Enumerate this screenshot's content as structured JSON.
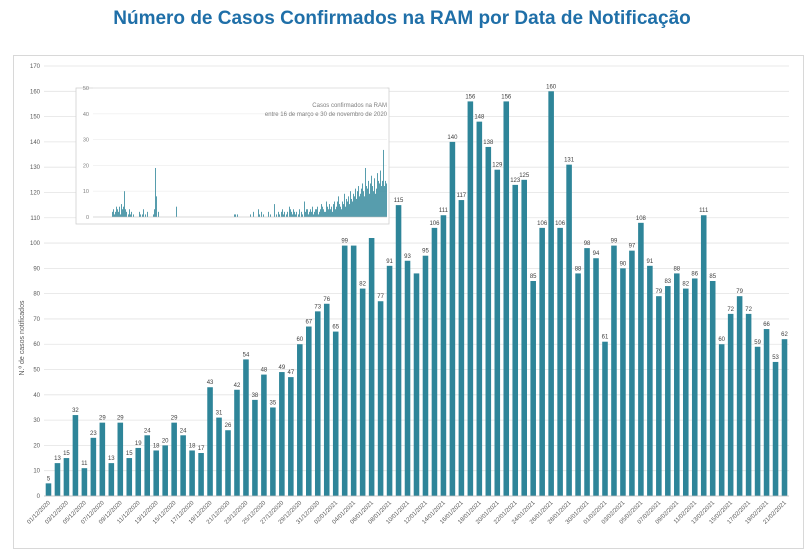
{
  "title": "Número de Casos Confirmados na RAM por Data de Notificação",
  "colors": {
    "bar": "#2e8599",
    "title": "#1f6fa8",
    "grid": "#e3e3e3",
    "text": "#595959"
  },
  "chart_data": [
    {
      "type": "bar",
      "title": "",
      "xlabel": "",
      "ylabel": "N.º de casos notificados",
      "ylim": [
        0,
        170
      ],
      "yticks": [
        0,
        10,
        20,
        30,
        40,
        50,
        60,
        70,
        80,
        90,
        100,
        110,
        120,
        130,
        140,
        150,
        160,
        170
      ],
      "tick_labels": [
        "01/12/2020",
        "03/12/2020",
        "05/12/2020",
        "07/12/2020",
        "09/12/2020",
        "11/12/2020",
        "13/12/2020",
        "15/12/2020",
        "17/12/2020",
        "19/12/2020",
        "21/12/2020",
        "23/12/2020",
        "25/12/2020",
        "27/12/2020",
        "29/12/2020",
        "31/12/2020",
        "02/01/2021",
        "04/01/2021",
        "06/01/2021",
        "08/01/2021",
        "10/01/2021",
        "12/01/2021",
        "14/01/2021",
        "16/01/2021",
        "18/01/2021",
        "20/01/2021",
        "22/01/2021",
        "24/01/2021",
        "26/01/2021",
        "28/01/2021",
        "30/01/2021",
        "01/02/2021",
        "03/02/2021",
        "05/02/2021",
        "07/02/2021",
        "09/02/2021",
        "11/02/2021",
        "13/02/2021",
        "15/02/2021",
        "17/02/2021",
        "19/02/2021",
        "21/02/2021"
      ],
      "values": [
        5,
        13,
        15,
        32,
        11,
        23,
        29,
        13,
        29,
        15,
        19,
        24,
        18,
        20,
        29,
        24,
        18,
        17,
        43,
        31,
        26,
        42,
        54,
        38,
        48,
        35,
        49,
        47,
        60,
        67,
        73,
        76,
        65,
        99,
        99,
        82,
        102,
        77,
        91,
        115,
        93,
        88,
        95,
        106,
        111,
        140,
        117,
        156,
        148,
        138,
        129,
        156,
        123,
        125,
        85,
        106,
        160,
        106,
        131,
        88,
        98,
        94,
        61,
        99,
        90,
        97,
        108,
        91,
        79,
        83,
        88,
        82,
        86,
        111,
        85,
        60,
        72,
        79,
        72,
        59,
        66,
        53,
        62
      ],
      "data_labels": [
        "5",
        "13",
        "15",
        "32",
        "11",
        "23",
        "29",
        "13",
        "29",
        "15",
        "19",
        "24",
        "18",
        "20",
        "29",
        "24",
        "18",
        "17",
        "43",
        "31",
        "26",
        "42",
        "54",
        "38",
        "48",
        "35",
        "49",
        "47",
        "60",
        "67",
        "73",
        "76",
        "65",
        "99",
        "",
        "82",
        "",
        "77",
        "91",
        "115",
        "93",
        "",
        "95",
        "106",
        "111",
        "140",
        "117",
        "156",
        "148",
        "138",
        "129",
        "156",
        "123",
        "125",
        "85",
        "106",
        "160",
        "106",
        "131",
        "88",
        "98",
        "94",
        "61",
        "99",
        "90",
        "97",
        "108",
        "91",
        "79",
        "83",
        "88",
        "82",
        "86",
        "111",
        "85",
        "60",
        "72",
        "79",
        "72",
        "59",
        "66",
        "53",
        "62"
      ]
    },
    {
      "type": "bar",
      "title": "Casos confirmados na RAM entre 16 de março e 30 de novembro de 2020",
      "title_lines": [
        "Casos confirmados na RAM",
        "entre 16 de março e 30 de novembro de 2020"
      ],
      "ylim": [
        0,
        50
      ],
      "yticks": [
        0,
        10,
        20,
        30,
        40,
        50
      ],
      "values": [
        0,
        0,
        0,
        0,
        0,
        0,
        0,
        0,
        0,
        0,
        0,
        0,
        0,
        0,
        0,
        0,
        0,
        0,
        0,
        2,
        3,
        1,
        2,
        4,
        3,
        2,
        4,
        1,
        5,
        3,
        4,
        10,
        3,
        2,
        0,
        1,
        3,
        1,
        2,
        0,
        1,
        0,
        0,
        0,
        0,
        0,
        2,
        1,
        0,
        1,
        3,
        0,
        1,
        0,
        2,
        0,
        0,
        0,
        0,
        0,
        1,
        3,
        19,
        8,
        0,
        2,
        0,
        0,
        0,
        0,
        0,
        0,
        0,
        0,
        0,
        0,
        0,
        0,
        0,
        0,
        0,
        0,
        0,
        4,
        0,
        0,
        0,
        0,
        0,
        0,
        0,
        0,
        0,
        0,
        0,
        0,
        0,
        0,
        0,
        0,
        0,
        0,
        0,
        0,
        0,
        0,
        0,
        0,
        0,
        0,
        0,
        0,
        0,
        0,
        0,
        0,
        0,
        0,
        0,
        0,
        0,
        0,
        0,
        0,
        0,
        0,
        0,
        0,
        0,
        0,
        0,
        0,
        0,
        0,
        0,
        0,
        0,
        0,
        0,
        0,
        0,
        1,
        1,
        0,
        1,
        0,
        0,
        0,
        0,
        0,
        0,
        0,
        0,
        0,
        0,
        0,
        0,
        1,
        0,
        0,
        2,
        0,
        0,
        0,
        0,
        3,
        1,
        0,
        2,
        0,
        1,
        0,
        0,
        0,
        0,
        2,
        0,
        1,
        0,
        0,
        0,
        5,
        0,
        1,
        0,
        2,
        1,
        0,
        2,
        3,
        1,
        2,
        0,
        1,
        2,
        0,
        4,
        3,
        2,
        1,
        3,
        2,
        1,
        2,
        0,
        1,
        3,
        0,
        2,
        1,
        0,
        6,
        2,
        3,
        3,
        1,
        2,
        3,
        2,
        4,
        1,
        2,
        3,
        3,
        4,
        1,
        2,
        3,
        5,
        4,
        3,
        2,
        2,
        6,
        4,
        3,
        5,
        3,
        4,
        2,
        5,
        6,
        3,
        4,
        6,
        8,
        5,
        4,
        3,
        6,
        5,
        9,
        4,
        7,
        6,
        8,
        5,
        10,
        7,
        6,
        9,
        8,
        11,
        7,
        10,
        12,
        8,
        9,
        11,
        13,
        10,
        8,
        19,
        12,
        11,
        14,
        9,
        13,
        16,
        12,
        10,
        15,
        9,
        11,
        17,
        14,
        13,
        18,
        12,
        14,
        26,
        12,
        14,
        13
      ]
    }
  ]
}
